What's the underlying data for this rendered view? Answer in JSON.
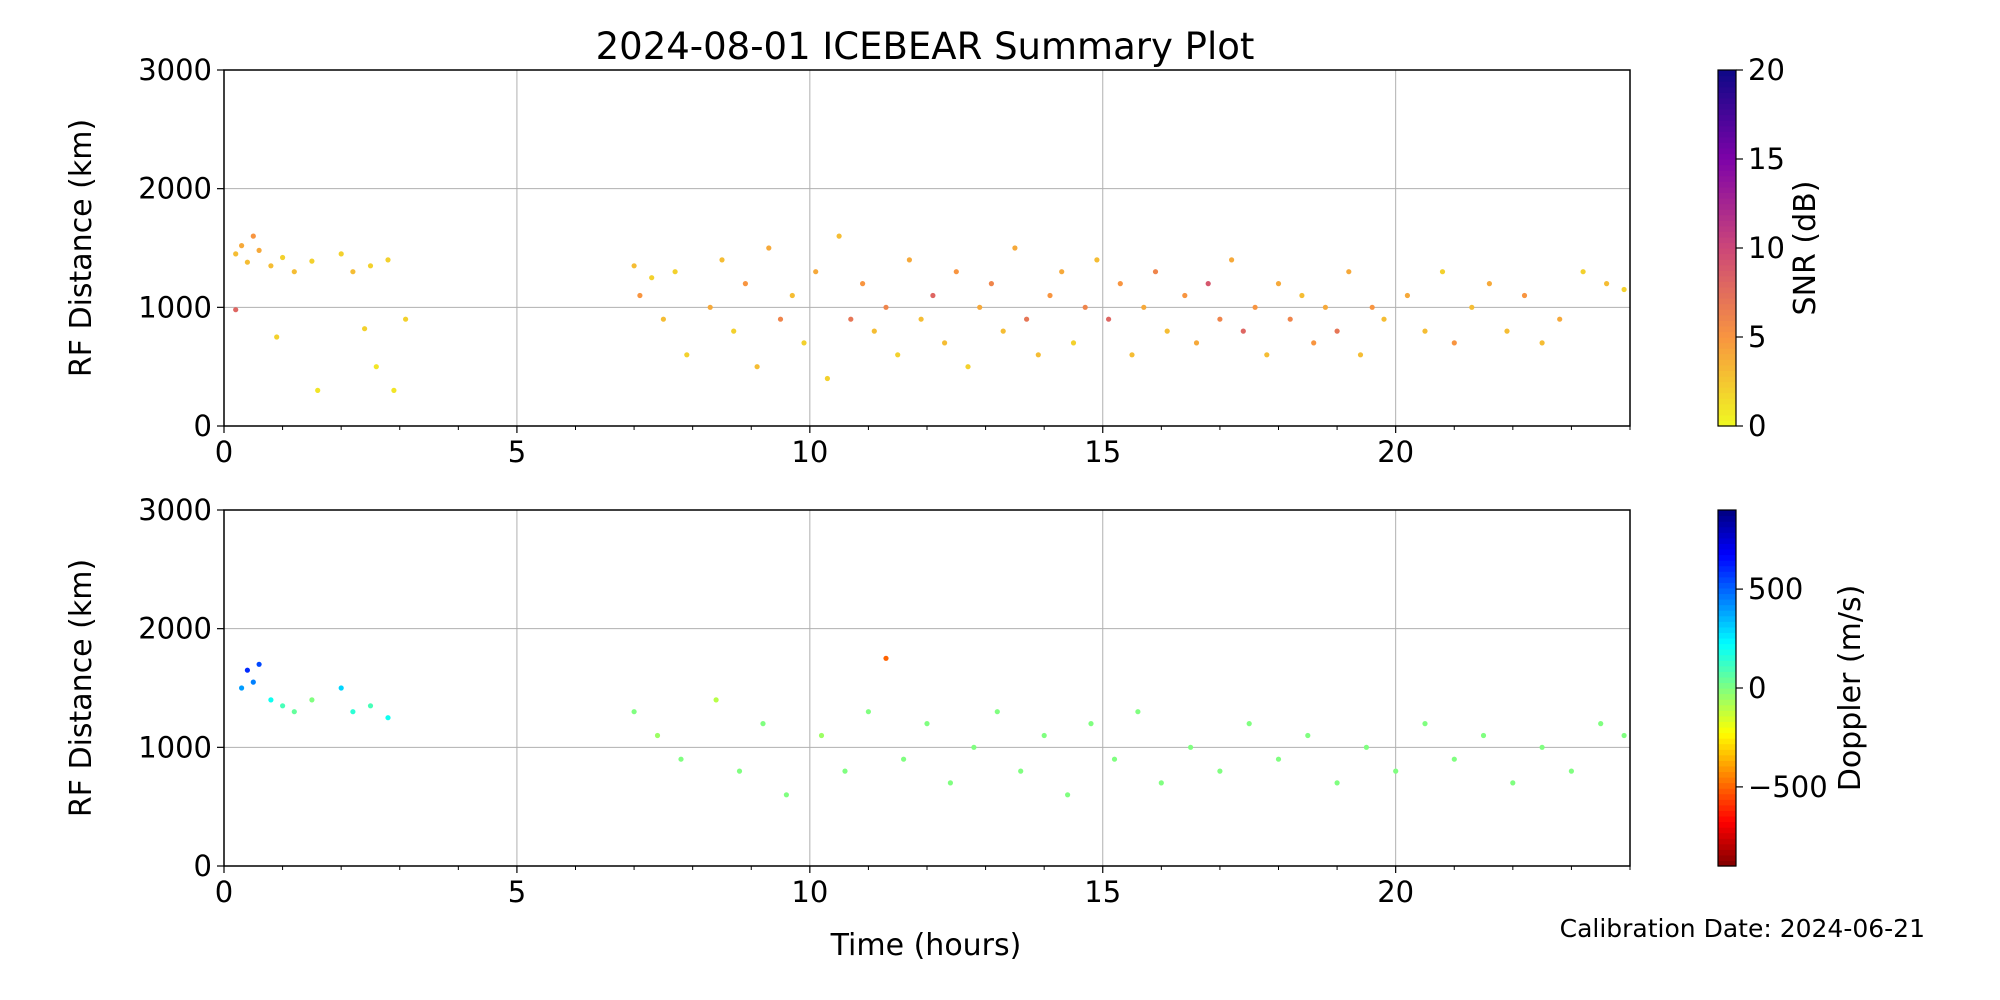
{
  "figure": {
    "title": "2024-08-01 ICEBEAR Summary Plot",
    "xlabel": "Time (hours)",
    "calibration_note": "Calibration Date: 2024-06-21"
  },
  "chart_data": [
    {
      "type": "scatter",
      "panel": "top",
      "ylabel": "RF Distance (km)",
      "xlim": [
        0,
        24
      ],
      "ylim": [
        0,
        3000
      ],
      "xticks": [
        0,
        5,
        10,
        15,
        20
      ],
      "yticks": [
        0,
        1000,
        2000,
        3000
      ],
      "grid": true,
      "colorbar": {
        "label": "SNR (dB)",
        "range": [
          0,
          20
        ],
        "ticks": [
          0,
          5,
          10,
          15,
          20
        ],
        "colormap": "plasma_r"
      },
      "series": [
        {
          "points": [
            [
              0.2,
              1450,
              3
            ],
            [
              0.3,
              1520,
              4
            ],
            [
              0.4,
              1380,
              3
            ],
            [
              0.5,
              1600,
              5
            ],
            [
              0.6,
              1480,
              4
            ],
            [
              0.8,
              1350,
              3
            ],
            [
              1.0,
              1420,
              2
            ],
            [
              1.2,
              1300,
              3
            ],
            [
              1.5,
              1390,
              2
            ],
            [
              2.0,
              1450,
              2
            ],
            [
              2.2,
              1300,
              3
            ],
            [
              2.5,
              1350,
              2
            ],
            [
              2.8,
              1400,
              2
            ],
            [
              0.2,
              980,
              8
            ],
            [
              0.9,
              750,
              2
            ],
            [
              1.6,
              300,
              1
            ],
            [
              2.4,
              820,
              2
            ],
            [
              2.6,
              500,
              1
            ],
            [
              2.9,
              300,
              1
            ],
            [
              3.1,
              900,
              2
            ],
            [
              7.0,
              1350,
              3
            ],
            [
              7.1,
              1100,
              5
            ],
            [
              7.3,
              1250,
              2
            ],
            [
              7.5,
              900,
              3
            ],
            [
              7.7,
              1300,
              2
            ],
            [
              7.9,
              600,
              2
            ],
            [
              8.3,
              1000,
              4
            ],
            [
              8.5,
              1400,
              3
            ],
            [
              8.7,
              800,
              2
            ],
            [
              8.9,
              1200,
              5
            ],
            [
              9.1,
              500,
              3
            ],
            [
              9.3,
              1500,
              4
            ],
            [
              9.5,
              900,
              6
            ],
            [
              9.7,
              1100,
              3
            ],
            [
              9.9,
              700,
              2
            ],
            [
              10.1,
              1300,
              4
            ],
            [
              10.3,
              400,
              2
            ],
            [
              10.5,
              1600,
              3
            ],
            [
              10.7,
              900,
              7
            ],
            [
              10.9,
              1200,
              5
            ],
            [
              11.1,
              800,
              3
            ],
            [
              11.3,
              1000,
              6
            ],
            [
              11.5,
              600,
              2
            ],
            [
              11.7,
              1400,
              4
            ],
            [
              11.9,
              900,
              3
            ],
            [
              12.1,
              1100,
              8
            ],
            [
              12.3,
              700,
              3
            ],
            [
              12.5,
              1300,
              5
            ],
            [
              12.7,
              500,
              2
            ],
            [
              12.9,
              1000,
              4
            ],
            [
              13.1,
              1200,
              6
            ],
            [
              13.3,
              800,
              3
            ],
            [
              13.5,
              1500,
              4
            ],
            [
              13.7,
              900,
              7
            ],
            [
              13.9,
              600,
              3
            ],
            [
              14.1,
              1100,
              5
            ],
            [
              14.3,
              1300,
              4
            ],
            [
              14.5,
              700,
              2
            ],
            [
              14.7,
              1000,
              6
            ],
            [
              14.9,
              1400,
              3
            ],
            [
              15.1,
              900,
              8
            ],
            [
              15.3,
              1200,
              5
            ],
            [
              15.5,
              600,
              3
            ],
            [
              15.7,
              1000,
              4
            ],
            [
              15.9,
              1300,
              6
            ],
            [
              16.1,
              800,
              3
            ],
            [
              16.4,
              1100,
              5
            ],
            [
              16.6,
              700,
              4
            ],
            [
              16.8,
              1200,
              9
            ],
            [
              17.0,
              900,
              6
            ],
            [
              17.2,
              1400,
              4
            ],
            [
              17.4,
              800,
              8
            ],
            [
              17.6,
              1000,
              5
            ],
            [
              17.8,
              600,
              3
            ],
            [
              18.0,
              1200,
              4
            ],
            [
              18.2,
              900,
              6
            ],
            [
              18.4,
              1100,
              3
            ],
            [
              18.6,
              700,
              5
            ],
            [
              18.8,
              1000,
              4
            ],
            [
              19.0,
              800,
              7
            ],
            [
              19.2,
              1300,
              4
            ],
            [
              19.4,
              600,
              3
            ],
            [
              19.6,
              1000,
              5
            ],
            [
              19.8,
              900,
              3
            ],
            [
              20.2,
              1100,
              4
            ],
            [
              20.5,
              800,
              3
            ],
            [
              20.8,
              1300,
              2
            ],
            [
              21.0,
              700,
              5
            ],
            [
              21.3,
              1000,
              3
            ],
            [
              21.6,
              1200,
              4
            ],
            [
              21.9,
              800,
              3
            ],
            [
              22.2,
              1100,
              5
            ],
            [
              22.5,
              700,
              3
            ],
            [
              22.8,
              900,
              4
            ],
            [
              23.2,
              1300,
              2
            ],
            [
              23.6,
              1200,
              3
            ],
            [
              23.9,
              1150,
              2
            ]
          ]
        }
      ]
    },
    {
      "type": "scatter",
      "panel": "bottom",
      "ylabel": "RF Distance (km)",
      "xlim": [
        0,
        24
      ],
      "ylim": [
        0,
        3000
      ],
      "xticks": [
        0,
        5,
        10,
        15,
        20
      ],
      "yticks": [
        0,
        1000,
        2000,
        3000
      ],
      "grid": true,
      "colorbar": {
        "label": "Doppler (m/s)",
        "range": [
          -900,
          900
        ],
        "ticks": [
          -500,
          0,
          500
        ],
        "colormap": "jet_r"
      },
      "series": [
        {
          "points": [
            [
              0.3,
              1500,
              400
            ],
            [
              0.4,
              1650,
              600
            ],
            [
              0.5,
              1550,
              450
            ],
            [
              0.6,
              1700,
              550
            ],
            [
              0.8,
              1400,
              200
            ],
            [
              1.0,
              1350,
              100
            ],
            [
              1.2,
              1300,
              50
            ],
            [
              1.5,
              1400,
              0
            ],
            [
              2.0,
              1500,
              300
            ],
            [
              2.2,
              1300,
              150
            ],
            [
              2.5,
              1350,
              100
            ],
            [
              2.8,
              1250,
              200
            ],
            [
              7.0,
              1300,
              0
            ],
            [
              7.4,
              1100,
              -50
            ],
            [
              7.8,
              900,
              0
            ],
            [
              8.4,
              1400,
              -100
            ],
            [
              8.8,
              800,
              0
            ],
            [
              9.2,
              1200,
              0
            ],
            [
              9.6,
              600,
              0
            ],
            [
              10.2,
              1100,
              -50
            ],
            [
              10.6,
              800,
              0
            ],
            [
              11.0,
              1300,
              0
            ],
            [
              11.3,
              1750,
              -500
            ],
            [
              11.6,
              900,
              0
            ],
            [
              12.0,
              1200,
              0
            ],
            [
              12.4,
              700,
              0
            ],
            [
              12.8,
              1000,
              0
            ],
            [
              13.2,
              1300,
              0
            ],
            [
              13.6,
              800,
              0
            ],
            [
              14.0,
              1100,
              0
            ],
            [
              14.4,
              600,
              0
            ],
            [
              14.8,
              1200,
              0
            ],
            [
              15.2,
              900,
              0
            ],
            [
              15.6,
              1300,
              0
            ],
            [
              16.0,
              700,
              0
            ],
            [
              16.5,
              1000,
              0
            ],
            [
              17.0,
              800,
              0
            ],
            [
              17.5,
              1200,
              0
            ],
            [
              18.0,
              900,
              0
            ],
            [
              18.5,
              1100,
              0
            ],
            [
              19.0,
              700,
              0
            ],
            [
              19.5,
              1000,
              0
            ],
            [
              20.0,
              800,
              0
            ],
            [
              20.5,
              1200,
              0
            ],
            [
              21.0,
              900,
              0
            ],
            [
              21.5,
              1100,
              0
            ],
            [
              22.0,
              700,
              0
            ],
            [
              22.5,
              1000,
              0
            ],
            [
              23.0,
              800,
              0
            ],
            [
              23.5,
              1200,
              0
            ],
            [
              23.9,
              1100,
              0
            ]
          ]
        }
      ]
    }
  ]
}
